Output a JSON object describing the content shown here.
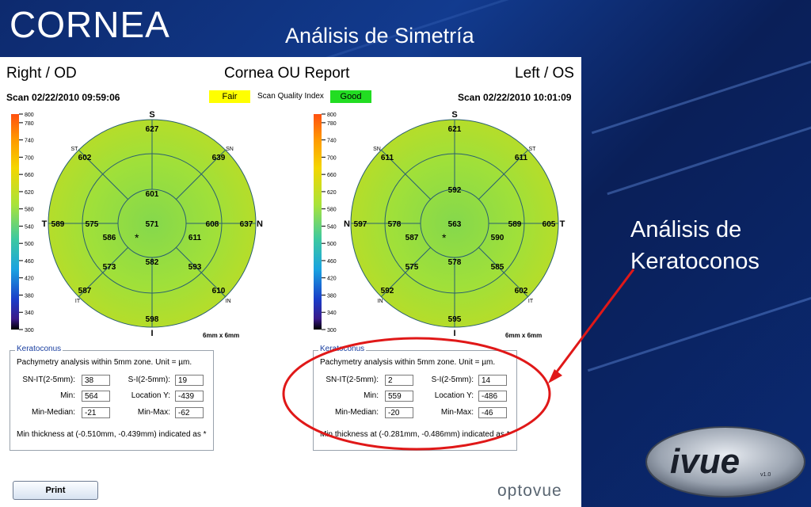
{
  "slide": {
    "title": "CORNEA",
    "subtitle": "Análisis de Simetría",
    "side_note_line1": "Análisis de",
    "side_note_line2": "Keratoconos"
  },
  "report": {
    "right_eye_label": "Right / OD",
    "title": "Cornea OU Report",
    "left_eye_label": "Left / OS",
    "right_scan": "Scan 02/22/2010 09:59:06",
    "left_scan": "Scan 02/22/2010 10:01:09",
    "quality_right": "Fair",
    "quality_label": "Scan Quality Index",
    "quality_left": "Good",
    "print_label": "Print",
    "brand": "optovue"
  },
  "scale": {
    "ticks": [
      "800",
      "780",
      "740",
      "700",
      "660",
      "620",
      "580",
      "540",
      "500",
      "460",
      "420",
      "380",
      "340",
      "300"
    ]
  },
  "maps": {
    "size_label": "6mm x 6mm",
    "right": {
      "dir_top": "S",
      "dir_bottom": "I",
      "dir_left": "T",
      "dir_right": "N",
      "oct_tl": "ST",
      "oct_tr": "SN",
      "oct_bl": "IT",
      "oct_br": "IN",
      "center": "571",
      "inner_top": "601",
      "inner_tr": "611",
      "inner_right": "608",
      "inner_br": "593",
      "inner_bottom": "582",
      "inner_bl": "573",
      "inner_left": "575",
      "inner_tl": "586",
      "outer_top": "627",
      "outer_tr": "639",
      "outer_right": "637",
      "outer_br": "610",
      "outer_bottom": "598",
      "outer_bl": "587",
      "outer_left": "589",
      "outer_tl": "602"
    },
    "left": {
      "dir_top": "S",
      "dir_bottom": "I",
      "dir_left": "N",
      "dir_right": "T",
      "oct_tl": "SN",
      "oct_tr": "ST",
      "oct_bl": "IN",
      "oct_br": "IT",
      "center": "563",
      "inner_top": "592",
      "inner_tr": "590",
      "inner_right": "589",
      "inner_br": "585",
      "inner_bottom": "578",
      "inner_bl": "575",
      "inner_left": "578",
      "inner_tl": "587",
      "outer_top": "621",
      "outer_tr": "611",
      "outer_right": "605",
      "outer_br": "602",
      "outer_bottom": "595",
      "outer_bl": "592",
      "outer_left": "597",
      "outer_tl": "611"
    }
  },
  "keratoconus": {
    "legend": "Keratoconus",
    "description": "Pachymetry analysis within 5mm zone. Unit = µm.",
    "labels": {
      "sn_it": "SN-IT(2-5mm):",
      "s_i": "S-I(2-5mm):",
      "min": "Min:",
      "location_y": "Location Y:",
      "min_median": "Min-Median:",
      "min_max": "Min-Max:"
    },
    "right": {
      "sn_it": "38",
      "s_i": "19",
      "min": "564",
      "location_y": "-439",
      "min_median": "-21",
      "min_max": "-62",
      "note": "Min thickness at (-0.510mm, -0.439mm) indicated as *"
    },
    "left": {
      "sn_it": "2",
      "s_i": "14",
      "min": "559",
      "location_y": "-486",
      "min_median": "-20",
      "min_max": "-46",
      "note": "Min thickness at (-0.281mm, -0.486mm) indicated as *"
    }
  },
  "brand_logo": {
    "text": "ivue",
    "version": "v1.0"
  },
  "colors": {
    "quality_fair": "#ffff00",
    "quality_good": "#22dd22",
    "map_fill": "#9fe03a",
    "annotation_red": "#e01818"
  }
}
